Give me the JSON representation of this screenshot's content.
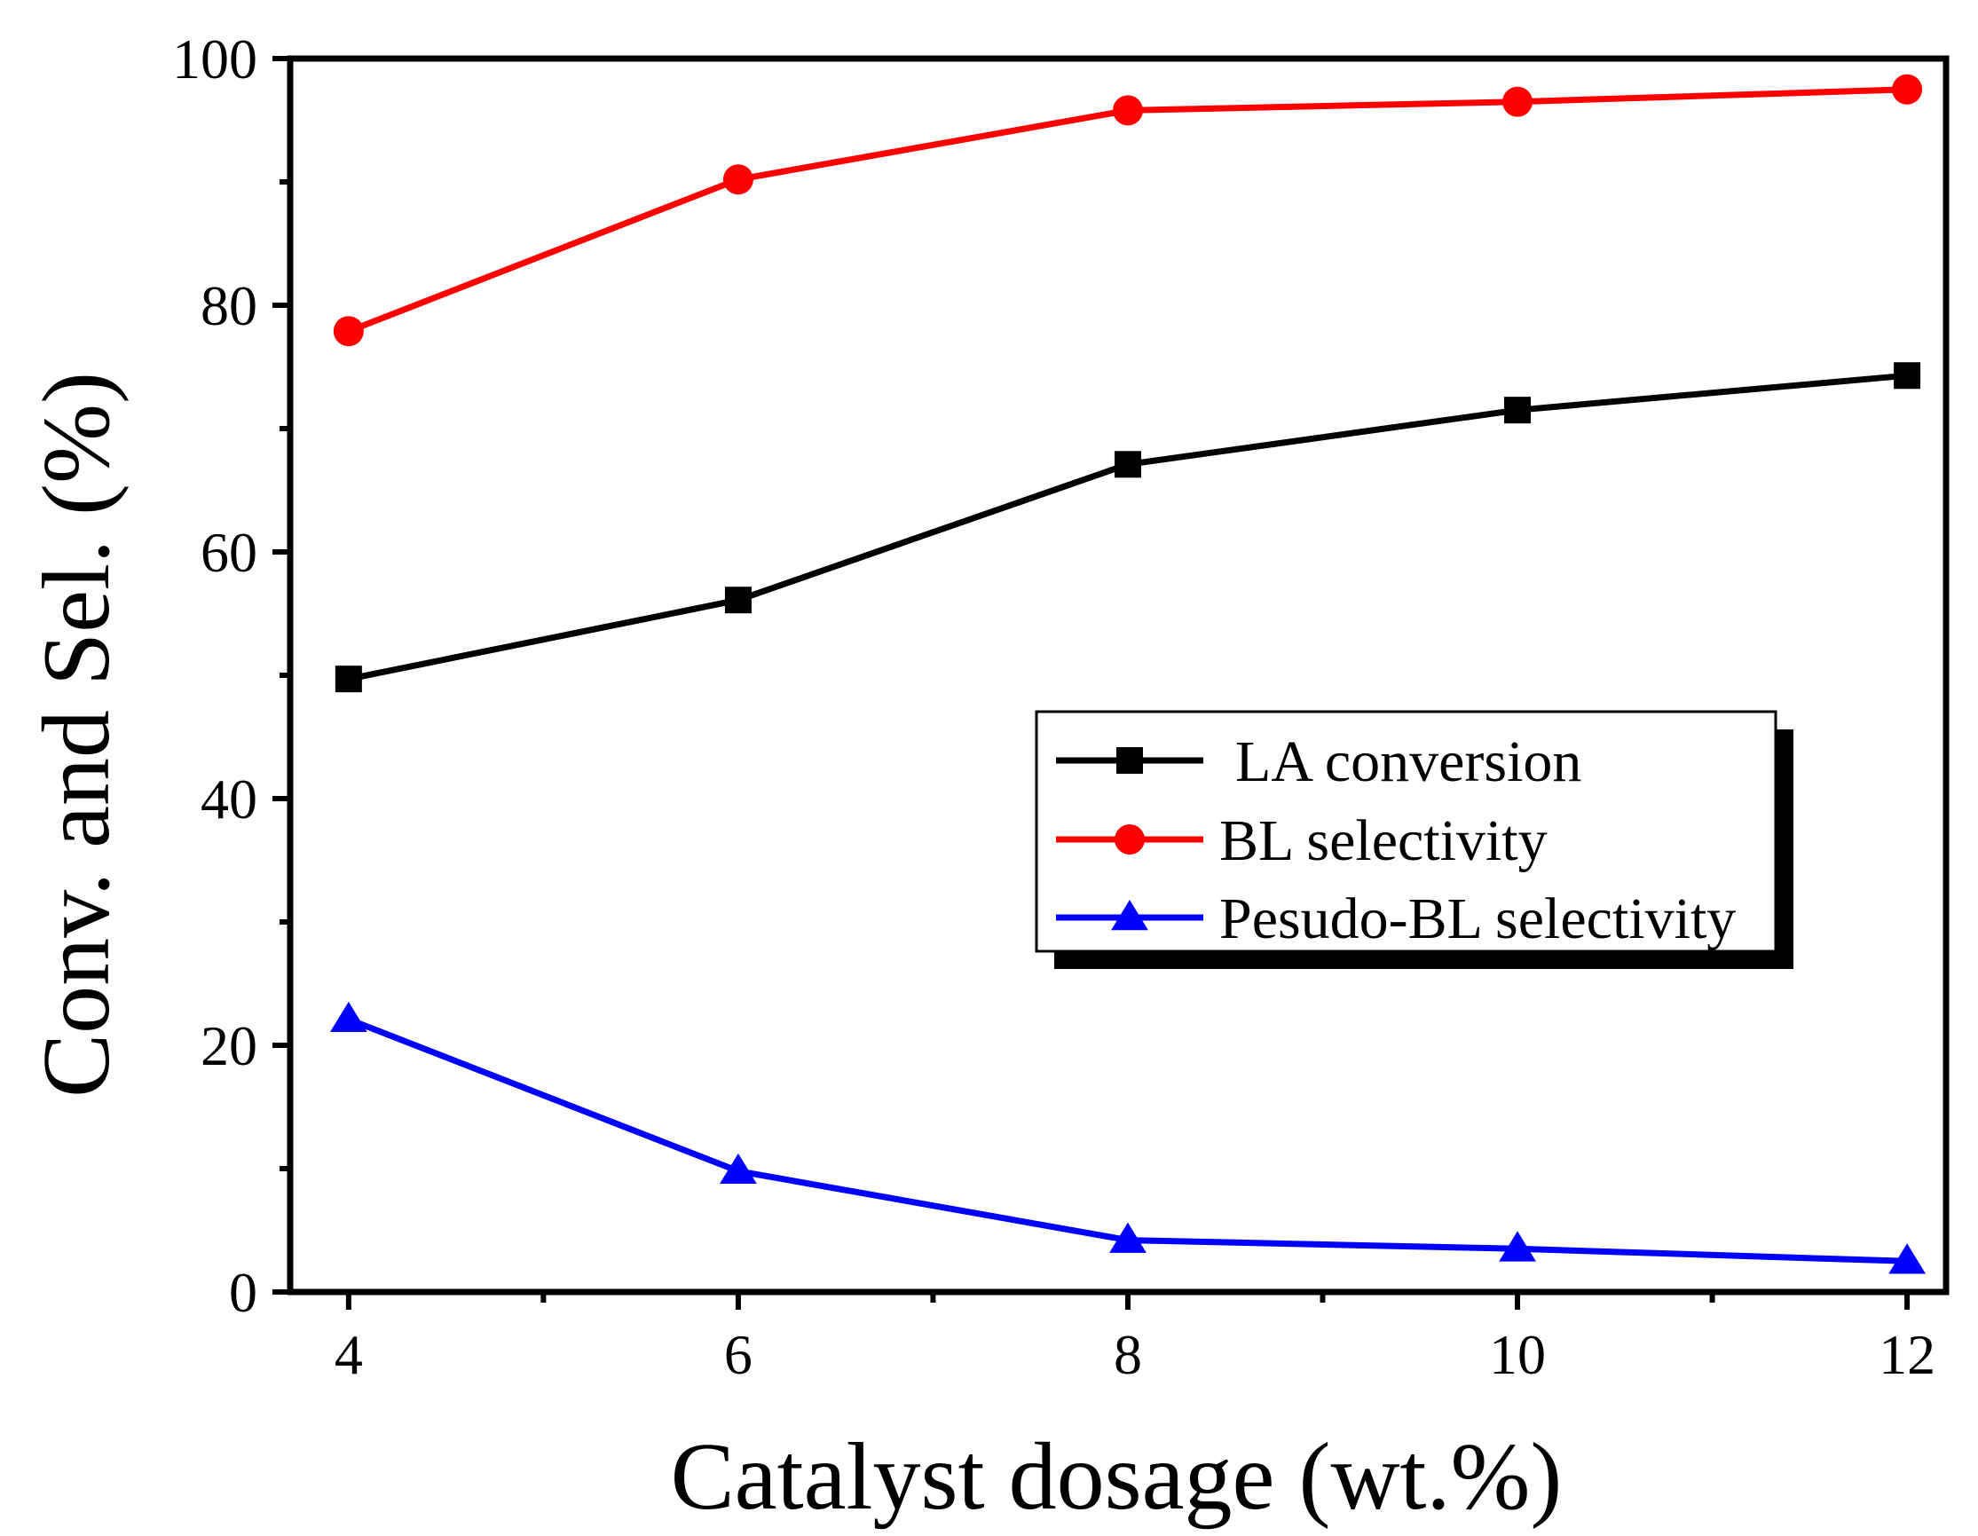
{
  "chart_data": {
    "type": "line",
    "title": "",
    "xlabel": "Catalyst dosage (wt.%)",
    "ylabel": "Conv. and Sel. (%)",
    "x": [
      4,
      6,
      8,
      10,
      12
    ],
    "xlim": [
      3.7,
      12.2
    ],
    "ylim": [
      0,
      100
    ],
    "x_ticks": [
      4,
      6,
      8,
      10,
      12
    ],
    "x_tick_labels": [
      "4",
      "6",
      "8",
      "10",
      "12"
    ],
    "x_minor_ticks": [
      5,
      7,
      9,
      11
    ],
    "y_ticks": [
      0,
      20,
      40,
      60,
      80,
      100
    ],
    "y_tick_labels": [
      "0",
      "20",
      "40",
      "60",
      "80",
      "100"
    ],
    "y_minor_ticks": [
      10,
      30,
      50,
      70,
      90
    ],
    "grid": false,
    "legend_position": "center-right",
    "series": [
      {
        "name": "LA conversion",
        "values": [
          49.7,
          56.1,
          67.1,
          71.5,
          74.3
        ],
        "color": "#000000",
        "marker": "square"
      },
      {
        "name": "BL selectivity",
        "values": [
          77.9,
          90.2,
          95.8,
          96.5,
          97.5
        ],
        "color": "#ff0000",
        "marker": "circle"
      },
      {
        "name": "Pesudo-BL selectivity",
        "values": [
          22.1,
          9.8,
          4.2,
          3.5,
          2.5
        ],
        "color": "#0000ff",
        "marker": "triangle"
      }
    ]
  }
}
